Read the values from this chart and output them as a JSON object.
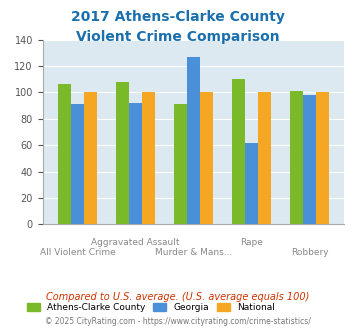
{
  "title_line1": "2017 Athens-Clarke County",
  "title_line2": "Violent Crime Comparison",
  "categories": [
    "All Violent Crime",
    "Aggravated\nAssault",
    "Murder & Mans...",
    "Rape",
    "Robbery"
  ],
  "x_labels_top": [
    "",
    "Aggravated Assault",
    "",
    "Rape",
    ""
  ],
  "x_labels_bottom": [
    "All Violent Crime",
    "Murder & Mans...",
    "",
    "Robbery"
  ],
  "series": {
    "Athens-Clarke County": [
      106,
      108,
      91,
      110,
      101
    ],
    "Georgia": [
      91,
      92,
      127,
      62,
      98
    ],
    "National": [
      100,
      100,
      100,
      100,
      100
    ]
  },
  "colors": {
    "Athens-Clarke County": "#7aba2a",
    "Georgia": "#4a90d9",
    "National": "#f5a623"
  },
  "ylim": [
    0,
    140
  ],
  "yticks": [
    0,
    20,
    40,
    60,
    80,
    100,
    120,
    140
  ],
  "background_color": "#dce9f0",
  "title_color": "#1a6fad",
  "subtitle": "Compared to U.S. average. (U.S. average equals 100)",
  "subtitle_color": "#cc3300",
  "footer": "© 2025 CityRating.com - https://www.cityrating.com/crime-statistics/",
  "footer_color": "#777777",
  "legend_labels": [
    "Athens-Clarke County",
    "Georgia",
    "National"
  ]
}
